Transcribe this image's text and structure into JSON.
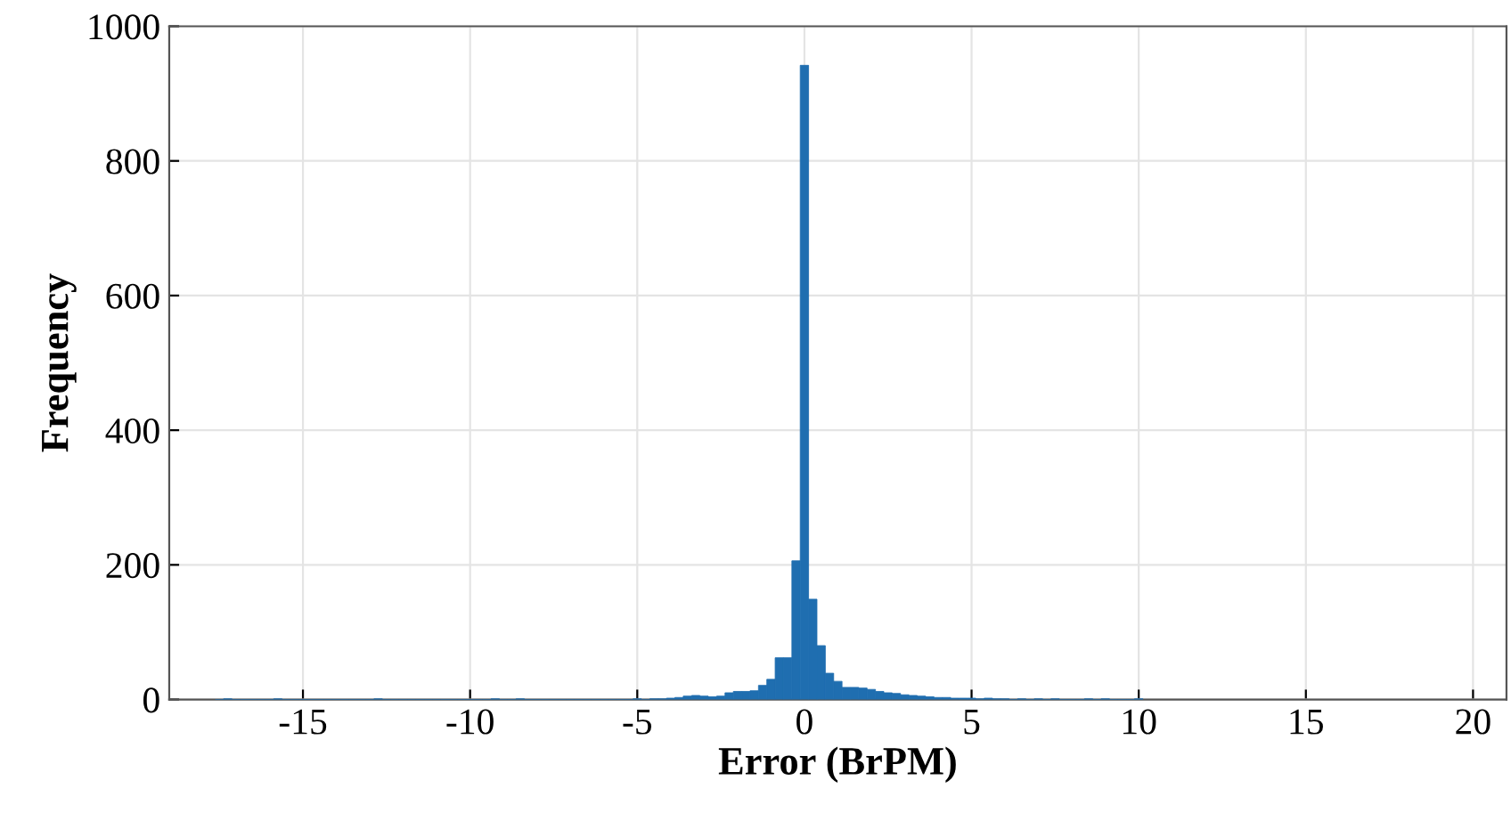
{
  "chart_data": {
    "type": "histogram",
    "xlabel": "Error (BrPM)",
    "ylabel": "Frequency",
    "bins": [
      -17.625,
      -17.375,
      -17.125,
      -16.875,
      -16.625,
      -16.375,
      -16.125,
      -15.875,
      -15.625,
      -15.375,
      -15.125,
      -14.875,
      -14.625,
      -14.375,
      -14.125,
      -13.875,
      -13.625,
      -13.375,
      -13.125,
      -12.875,
      -12.625,
      -12.375,
      -12.125,
      -11.875,
      -11.625,
      -11.375,
      -11.125,
      -10.875,
      -10.625,
      -10.375,
      -10.125,
      -9.875,
      -9.625,
      -9.375,
      -9.125,
      -8.875,
      -8.625,
      -8.375,
      -8.125,
      -7.875,
      -7.625,
      -7.375,
      -7.125,
      -6.875,
      -6.625,
      -6.375,
      -6.125,
      -5.875,
      -5.625,
      -5.375,
      -5.125,
      -4.875,
      -4.625,
      -4.375,
      -4.125,
      -3.875,
      -3.625,
      -3.375,
      -3.125,
      -2.875,
      -2.625,
      -2.375,
      -2.125,
      -1.875,
      -1.625,
      -1.375,
      -1.125,
      -0.875,
      -0.625,
      -0.375,
      -0.125,
      0.125,
      0.375,
      0.625,
      0.875,
      1.125,
      1.375,
      1.625,
      1.875,
      2.125,
      2.375,
      2.625,
      2.875,
      3.125,
      3.375,
      3.625,
      3.875,
      4.125,
      4.375,
      4.625,
      4.875,
      5.125,
      5.375,
      5.625,
      5.875,
      6.125,
      6.375,
      6.625,
      6.875,
      7.125,
      7.375,
      7.625,
      7.875,
      8.125,
      8.375,
      8.625,
      8.875,
      9.125,
      9.375,
      9.625,
      9.875,
      10.125
    ],
    "values": [
      0,
      1,
      0,
      0,
      0,
      0,
      0,
      1,
      0,
      0,
      0,
      0,
      0,
      0,
      0,
      0,
      0,
      0,
      0,
      1,
      0,
      0,
      0,
      0,
      0,
      0,
      0,
      0,
      0,
      0,
      0,
      0,
      0,
      1,
      0,
      0,
      1,
      0,
      0,
      0,
      0,
      0,
      0,
      0,
      0,
      0,
      0,
      0,
      0,
      0,
      1,
      0,
      1,
      1,
      2,
      3,
      5,
      6,
      5,
      4,
      5,
      10,
      12,
      12,
      13,
      21,
      30,
      62,
      62,
      206,
      942,
      149,
      80,
      39,
      27,
      18,
      18,
      17,
      15,
      12,
      10,
      9,
      7,
      6,
      5,
      4,
      3,
      3,
      2,
      2,
      2,
      1,
      2,
      1,
      1,
      0,
      1,
      0,
      1,
      0,
      1,
      0,
      0,
      0,
      1,
      0,
      1,
      0,
      0,
      0,
      1
    ],
    "color": "#1f6eb0",
    "xlim": [
      -19,
      21
    ],
    "xticks": [
      -15,
      -10,
      -5,
      0,
      5,
      10,
      15,
      20
    ],
    "ylim": [
      0,
      1000
    ],
    "yticks": [
      0,
      200,
      400,
      600,
      800,
      1000
    ],
    "grid": true
  }
}
